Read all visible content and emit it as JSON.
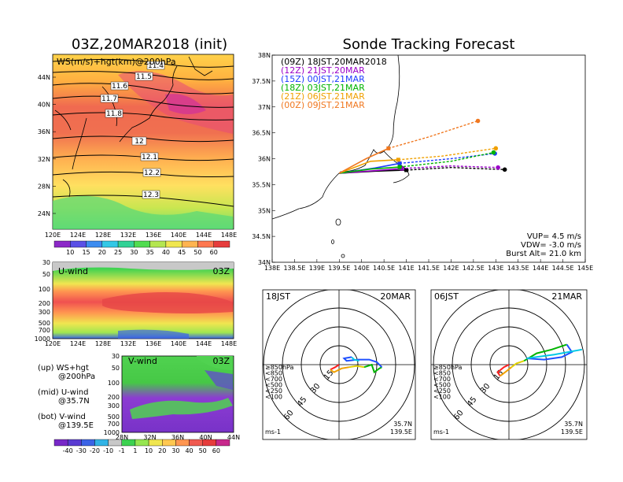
{
  "left": {
    "main_title": "03Z,20MAR2018 (init)",
    "top_panel": {
      "label": "WS(m/s)+hgt(km)@200hPa",
      "lat_ticks": [
        "44N",
        "40N",
        "36N",
        "32N",
        "28N",
        "24N"
      ],
      "lon_ticks": [
        "120E",
        "124E",
        "128E",
        "132E",
        "136E",
        "140E",
        "144E",
        "148E"
      ],
      "contour_labels": [
        "11.4",
        "11.5",
        "11.6",
        "11.7",
        "11.8",
        "12",
        "12.1",
        "12.2",
        "12.3"
      ]
    },
    "colorbar_top": [
      "10",
      "15",
      "20",
      "25",
      "30",
      "35",
      "40",
      "45",
      "50",
      "60"
    ],
    "mid_panel": {
      "label": "U-wind",
      "time": "03Z",
      "p_ticks": [
        "30",
        "50",
        "100",
        "200",
        "300",
        "500",
        "700",
        "1000"
      ],
      "lon_ticks": [
        "120E",
        "124E",
        "128E",
        "132E",
        "136E",
        "140E",
        "144E",
        "148E"
      ]
    },
    "bot_panel": {
      "label": "V-wind",
      "time": "03Z",
      "p_ticks": [
        "30",
        "50",
        "100",
        "200",
        "300",
        "500",
        "700",
        "1000"
      ],
      "lat_ticks": [
        "28N",
        "32N",
        "36N",
        "40N",
        "44N"
      ]
    },
    "legend_notes": [
      "(up) WS+hgt",
      "@200hPa",
      "(mid) U-wind",
      "@35.7N",
      "(bot) V-wind",
      "@139.5E"
    ],
    "colorbar_bottom": [
      "-40",
      "-30",
      "-20",
      "-10",
      "-1",
      "1",
      "10",
      "20",
      "30",
      "40",
      "50",
      "60"
    ]
  },
  "right": {
    "main_title": "Sonde Tracking Forecast",
    "legend": [
      {
        "text": "(09Z) 18JST,20MAR2018",
        "color": "#000000"
      },
      {
        "text": "(12Z) 21JST,20MAR",
        "color": "#9b00c8"
      },
      {
        "text": "(15Z) 00JST,21MAR",
        "color": "#1e3cff"
      },
      {
        "text": "(18Z) 03JST,21MAR",
        "color": "#00b400"
      },
      {
        "text": "(21Z) 06JST,21MAR",
        "color": "#f0a000"
      },
      {
        "text": "(00Z) 09JST,21MAR",
        "color": "#f07820"
      }
    ],
    "info": [
      "VUP= 4.5 m/s",
      "VDW= -3.0 m/s",
      "Burst Alt= 21.0 km"
    ],
    "hodo_left": {
      "time": "18JST",
      "date": "20MAR",
      "lat": "35.7N",
      "lon": "139.5E",
      "units": "ms-1",
      "ring_labels": [
        "15",
        "30",
        "45",
        "60"
      ]
    },
    "hodo_right": {
      "time": "06JST",
      "date": "21MAR",
      "lat": "35.7N",
      "lon": "139.5E",
      "units": "ms-1",
      "ring_labels": [
        "15",
        "30",
        "45",
        "60"
      ]
    },
    "hodo_legend": [
      {
        "text": "≥850hPa",
        "color": "#ff2020"
      },
      {
        "text": "<850",
        "color": "#f0a000"
      },
      {
        "text": "<700",
        "color": "#e0d000"
      },
      {
        "text": "<500",
        "color": "#00b400"
      },
      {
        "text": "<250",
        "color": "#1e50ff"
      },
      {
        "text": "<100",
        "color": "#00c8e6"
      }
    ]
  },
  "chart_data": [
    {
      "type": "line",
      "title": "Sonde Tracking Forecast",
      "xlabel": "",
      "ylabel": "",
      "xlim": [
        138,
        145
      ],
      "ylim": [
        34,
        38
      ],
      "x_ticks": [
        "138E",
        "138.5E",
        "139E",
        "139.5E",
        "140E",
        "140.5E",
        "141E",
        "141.5E",
        "142E",
        "142.5E",
        "143E",
        "143.5E",
        "144E",
        "144.5E",
        "145E"
      ],
      "y_ticks": [
        "34N",
        "34.5N",
        "35N",
        "35.5N",
        "36N",
        "36.5N",
        "37N",
        "37.5N",
        "38N"
      ],
      "series": [
        {
          "name": "(09Z) 18JST,20MAR2018",
          "color": "#000000",
          "asc": [
            [
              139.5,
              35.72
            ],
            [
              140.3,
              35.76
            ],
            [
              141.0,
              35.78
            ]
          ],
          "desc": [
            [
              141.0,
              35.78
            ],
            [
              142.0,
              35.83
            ],
            [
              143.2,
              35.79
            ]
          ]
        },
        {
          "name": "(12Z) 21JST,20MAR",
          "color": "#9b00c8",
          "asc": [
            [
              139.5,
              35.72
            ],
            [
              140.3,
              35.77
            ],
            [
              140.9,
              35.81
            ]
          ],
          "desc": [
            [
              140.9,
              35.81
            ],
            [
              142.0,
              35.86
            ],
            [
              143.05,
              35.83
            ]
          ]
        },
        {
          "name": "(15Z) 00JST,21MAR",
          "color": "#1e3cff",
          "asc": [
            [
              139.5,
              35.72
            ],
            [
              140.3,
              35.82
            ],
            [
              140.85,
              35.91
            ]
          ],
          "desc": [
            [
              140.85,
              35.91
            ],
            [
              142.0,
              36.0
            ],
            [
              142.98,
              36.1
            ]
          ]
        },
        {
          "name": "(18Z) 03JST,21MAR",
          "color": "#00b400",
          "asc": [
            [
              139.5,
              35.72
            ],
            [
              140.2,
              35.8
            ],
            [
              140.85,
              35.84
            ]
          ],
          "desc": [
            [
              140.85,
              35.84
            ],
            [
              142.0,
              35.95
            ],
            [
              142.95,
              36.12
            ]
          ]
        },
        {
          "name": "(21Z) 06JST,21MAR",
          "color": "#f0a000",
          "asc": [
            [
              139.5,
              35.72
            ],
            [
              140.2,
              35.95
            ],
            [
              140.82,
              35.98
            ]
          ],
          "desc": [
            [
              140.82,
              35.98
            ],
            [
              141.8,
              36.05
            ],
            [
              143.0,
              36.2
            ]
          ]
        },
        {
          "name": "(00Z) 09JST,21MAR",
          "color": "#f07820",
          "asc": [
            [
              139.5,
              35.72
            ],
            [
              140.1,
              36.0
            ],
            [
              140.6,
              36.2
            ]
          ],
          "desc": [
            [
              140.6,
              36.2
            ],
            [
              141.5,
              36.42
            ],
            [
              142.6,
              36.73
            ]
          ]
        }
      ]
    },
    {
      "type": "line",
      "title": "18JST 20MAR",
      "xlabel": "",
      "ylabel": "ms-1",
      "xlim": [
        -60,
        60
      ],
      "ylim": [
        -60,
        60
      ],
      "series": [
        {
          "name": "≥850hPa",
          "color": "#ff2020",
          "points": [
            [
              0,
              0
            ],
            [
              -3,
              -2
            ],
            [
              -7,
              -4
            ]
          ]
        },
        {
          "name": "<850",
          "color": "#f0a000",
          "points": [
            [
              -7,
              -4
            ],
            [
              -4,
              -6
            ],
            [
              2,
              -3
            ],
            [
              8,
              -2
            ]
          ]
        },
        {
          "name": "<700",
          "color": "#e0d000",
          "points": [
            [
              8,
              -2
            ],
            [
              14,
              -1
            ],
            [
              20,
              -2
            ]
          ]
        },
        {
          "name": "<500",
          "color": "#00b400",
          "points": [
            [
              20,
              -2
            ],
            [
              26,
              0
            ],
            [
              28,
              -6
            ],
            [
              32,
              -3
            ],
            [
              34,
              -2
            ]
          ]
        },
        {
          "name": "<250",
          "color": "#1e50ff",
          "points": [
            [
              34,
              -2
            ],
            [
              30,
              2
            ],
            [
              24,
              4
            ],
            [
              15,
              4
            ],
            [
              6,
              3
            ],
            [
              4,
              5
            ],
            [
              10,
              6
            ]
          ]
        },
        {
          "name": "<100",
          "color": "#00c8e6",
          "points": [
            [
              10,
              6
            ],
            [
              12,
              4
            ],
            [
              16,
              3
            ]
          ]
        }
      ]
    },
    {
      "type": "line",
      "title": "06JST 21MAR",
      "xlabel": "",
      "ylabel": "ms-1",
      "xlim": [
        -60,
        60
      ],
      "ylim": [
        -60,
        60
      ],
      "series": [
        {
          "name": "≥850hPa",
          "color": "#ff2020",
          "points": [
            [
              0,
              0
            ],
            [
              -4,
              -2
            ],
            [
              -9,
              -6
            ],
            [
              -7,
              -9
            ]
          ]
        },
        {
          "name": "<850",
          "color": "#f0a000",
          "points": [
            [
              -7,
              -9
            ],
            [
              -3,
              -6
            ],
            [
              2,
              -2
            ]
          ]
        },
        {
          "name": "<700",
          "color": "#e0d000",
          "points": [
            [
              2,
              -2
            ],
            [
              6,
              1
            ],
            [
              12,
              3
            ]
          ]
        },
        {
          "name": "<500",
          "color": "#00b400",
          "points": [
            [
              12,
              3
            ],
            [
              22,
              9
            ],
            [
              34,
              12
            ],
            [
              46,
              16
            ]
          ]
        },
        {
          "name": "<250",
          "color": "#1e50ff",
          "points": [
            [
              46,
              16
            ],
            [
              50,
              10
            ],
            [
              42,
              6
            ],
            [
              28,
              4
            ],
            [
              14,
              5
            ]
          ]
        },
        {
          "name": "<100",
          "color": "#00c8e6",
          "points": [
            [
              14,
              5
            ],
            [
              36,
              8
            ],
            [
              58,
              12
            ]
          ]
        }
      ]
    }
  ]
}
